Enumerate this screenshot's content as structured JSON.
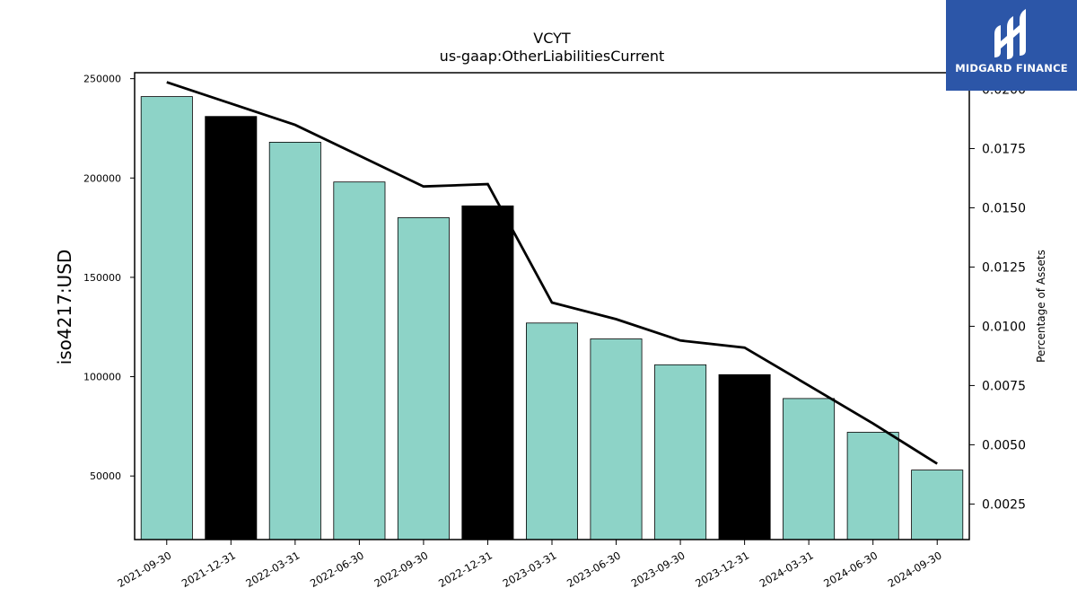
{
  "brand": {
    "name": "MIDGARD FINANCE",
    "logo_icon": "midgard-logo-icon",
    "color": "#2c56a8"
  },
  "chart_data": {
    "type": "bar",
    "title": "VCYT",
    "subtitle": "us-gaap:OtherLiabilitiesCurrent",
    "ylabel": "iso4217:USD",
    "y2label": "Percentage of Assets",
    "categories": [
      "2021-09-30",
      "2021-12-31",
      "2022-03-31",
      "2022-06-30",
      "2022-09-30",
      "2022-12-31",
      "2023-03-31",
      "2023-06-30",
      "2023-09-30",
      "2023-12-31",
      "2024-03-31",
      "2024-06-30",
      "2024-09-30"
    ],
    "values": [
      241000,
      231000,
      218000,
      198000,
      180000,
      186000,
      127000,
      119000,
      106000,
      101000,
      89000,
      72000,
      53000
    ],
    "bar_colors": [
      "#8dd3c7",
      "#000000",
      "#8dd3c7",
      "#8dd3c7",
      "#8dd3c7",
      "#000000",
      "#8dd3c7",
      "#8dd3c7",
      "#8dd3c7",
      "#000000",
      "#8dd3c7",
      "#8dd3c7",
      "#8dd3c7"
    ],
    "line_series": {
      "axis": "right",
      "color": "#000000",
      "values": [
        0.0203,
        0.0194,
        0.0185,
        0.0172,
        0.0159,
        0.016,
        0.011,
        0.0103,
        0.0094,
        0.0091,
        0.0075,
        0.0059,
        0.0042
      ]
    },
    "ylim": [
      18000,
      253000
    ],
    "yticks": [
      50000,
      100000,
      150000,
      200000,
      250000
    ],
    "y2lim": [
      0.001,
      0.0207
    ],
    "y2ticks": [
      0.0025,
      0.005,
      0.0075,
      0.01,
      0.0125,
      0.015,
      0.0175,
      0.02
    ],
    "y2ticklabels": [
      "0.0025",
      "0.0050",
      "0.0075",
      "0.0100",
      "0.0125",
      "0.0150",
      "0.0175",
      "0.0200"
    ],
    "grid": false
  }
}
